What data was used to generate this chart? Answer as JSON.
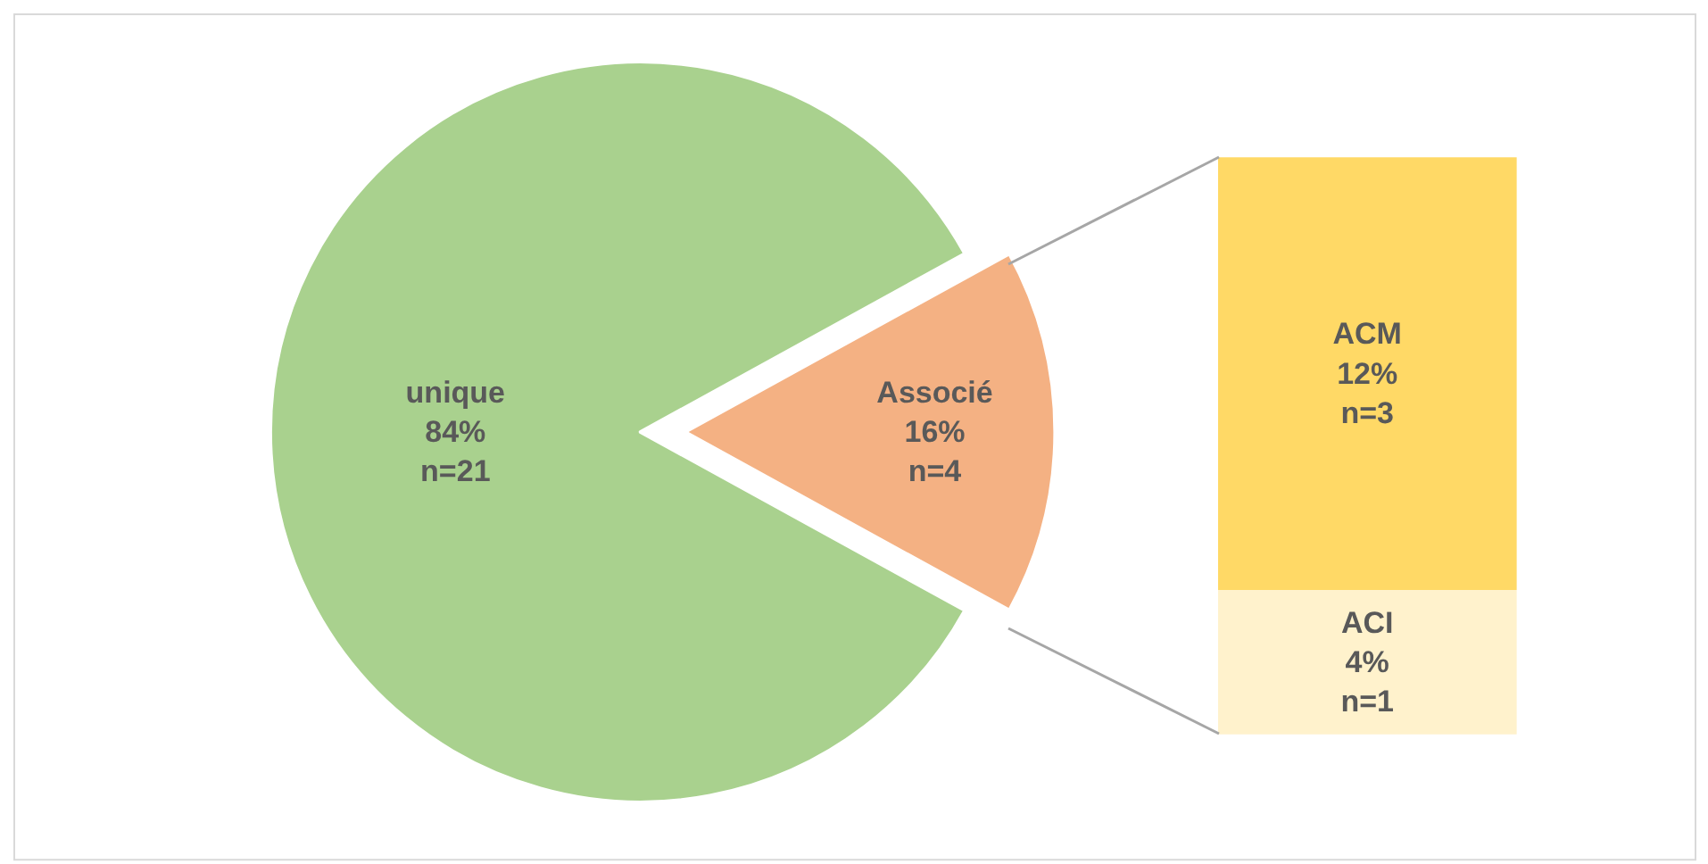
{
  "chart_data": [
    {
      "type": "pie",
      "categories": [
        "unique",
        "Associé"
      ],
      "values": [
        84,
        16
      ],
      "colors": [
        "#a9d18e",
        "#f4b183"
      ],
      "value_labels": [
        "84%\nn=21",
        "16%\nn=4"
      ]
    },
    {
      "type": "bar",
      "stacked": true,
      "categories": [
        null
      ],
      "ylim": [
        0,
        16
      ],
      "tick_labels": false,
      "series": [
        {
          "name": "ACI",
          "color": "#fff2cc",
          "values": [
            4
          ],
          "value_labels": [
            "4%\nn=1"
          ]
        },
        {
          "name": "ACM",
          "color": "#ffd966",
          "values": [
            12
          ],
          "value_labels": [
            "12%\nn=3"
          ]
        }
      ]
    }
  ]
}
